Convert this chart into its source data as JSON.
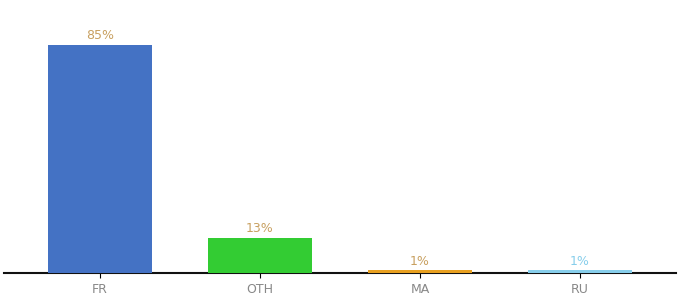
{
  "categories": [
    "FR",
    "OTH",
    "MA",
    "RU"
  ],
  "values": [
    85,
    13,
    1,
    1
  ],
  "bar_colors": [
    "#4472c4",
    "#33cc33",
    "#e8a020",
    "#87ceeb"
  ],
  "value_label_colors": [
    "#c8a060",
    "#c8a060",
    "#c8a060",
    "#87ceeb"
  ],
  "value_labels": [
    "85%",
    "13%",
    "1%",
    "1%"
  ],
  "ylim": [
    0,
    100
  ],
  "background_color": "#ffffff",
  "bar_width": 0.65,
  "tick_fontsize": 9,
  "label_fontsize": 9,
  "x_positions": [
    0,
    1,
    2,
    3
  ]
}
